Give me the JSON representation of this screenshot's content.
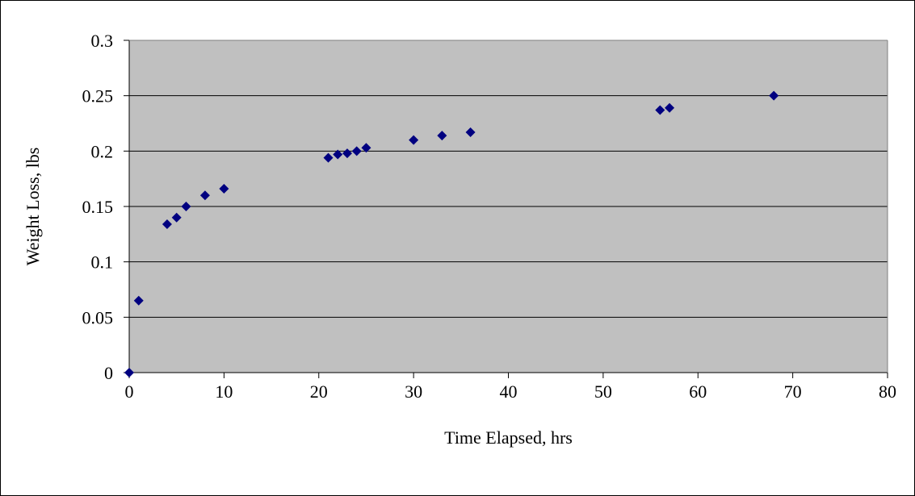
{
  "chart_data": {
    "type": "scatter",
    "title": "",
    "xlabel": "Time Elapsed, hrs",
    "ylabel": "Weight Loss, lbs",
    "xlim": [
      0,
      80
    ],
    "ylim": [
      0,
      0.3
    ],
    "x_ticks": [
      "0",
      "10",
      "20",
      "30",
      "40",
      "50",
      "60",
      "70",
      "80"
    ],
    "y_ticks": [
      "0",
      "0.05",
      "0.1",
      "0.15",
      "0.2",
      "0.25",
      "0.3"
    ],
    "grid": "horizontal",
    "legend": "none",
    "plot_background": "#c0c0c0",
    "marker_color": "#000080",
    "marker": "diamond",
    "series": [
      {
        "x": [
          0,
          1,
          4,
          5,
          6,
          8,
          10,
          21,
          22,
          23,
          24,
          25,
          30,
          33,
          36,
          56,
          57,
          68
        ],
        "y": [
          0,
          0.065,
          0.134,
          0.14,
          0.15,
          0.16,
          0.166,
          0.194,
          0.197,
          0.198,
          0.2,
          0.203,
          0.21,
          0.214,
          0.217,
          0.237,
          0.239,
          0.25
        ]
      }
    ]
  }
}
